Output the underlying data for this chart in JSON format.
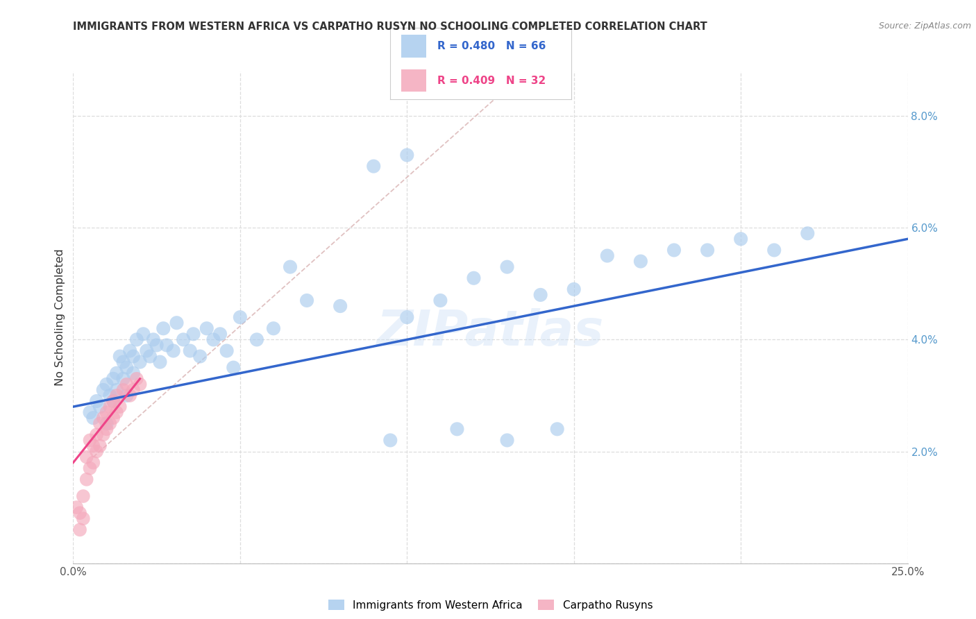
{
  "title": "IMMIGRANTS FROM WESTERN AFRICA VS CARPATHO RUSYN NO SCHOOLING COMPLETED CORRELATION CHART",
  "source": "Source: ZipAtlas.com",
  "ylabel": "No Schooling Completed",
  "xlim": [
    0.0,
    0.25
  ],
  "ylim": [
    0.0,
    0.088
  ],
  "xtick_vals": [
    0.0,
    0.05,
    0.1,
    0.15,
    0.2,
    0.25
  ],
  "xticklabels": [
    "0.0%",
    "",
    "",
    "",
    "",
    "25.0%"
  ],
  "ytick_vals_right": [
    0.0,
    0.02,
    0.04,
    0.06,
    0.08
  ],
  "yticklabels_right": [
    "",
    "2.0%",
    "4.0%",
    "6.0%",
    "8.0%"
  ],
  "watermark": "ZIPatlas",
  "blue_scatter_x": [
    0.005,
    0.006,
    0.007,
    0.008,
    0.009,
    0.01,
    0.01,
    0.011,
    0.012,
    0.012,
    0.013,
    0.013,
    0.014,
    0.015,
    0.015,
    0.016,
    0.016,
    0.017,
    0.018,
    0.018,
    0.019,
    0.02,
    0.021,
    0.022,
    0.023,
    0.024,
    0.025,
    0.026,
    0.027,
    0.028,
    0.03,
    0.031,
    0.033,
    0.035,
    0.036,
    0.038,
    0.04,
    0.042,
    0.044,
    0.046,
    0.048,
    0.05,
    0.055,
    0.06,
    0.065,
    0.07,
    0.08,
    0.09,
    0.095,
    0.1,
    0.11,
    0.12,
    0.13,
    0.14,
    0.15,
    0.16,
    0.17,
    0.18,
    0.19,
    0.2,
    0.21,
    0.22,
    0.1,
    0.13,
    0.115,
    0.145
  ],
  "blue_scatter_y": [
    0.027,
    0.026,
    0.029,
    0.028,
    0.031,
    0.025,
    0.032,
    0.03,
    0.033,
    0.029,
    0.034,
    0.031,
    0.037,
    0.033,
    0.036,
    0.03,
    0.035,
    0.038,
    0.034,
    0.037,
    0.04,
    0.036,
    0.041,
    0.038,
    0.037,
    0.04,
    0.039,
    0.036,
    0.042,
    0.039,
    0.038,
    0.043,
    0.04,
    0.038,
    0.041,
    0.037,
    0.042,
    0.04,
    0.041,
    0.038,
    0.035,
    0.044,
    0.04,
    0.042,
    0.053,
    0.047,
    0.046,
    0.071,
    0.022,
    0.044,
    0.047,
    0.051,
    0.053,
    0.048,
    0.049,
    0.055,
    0.054,
    0.056,
    0.056,
    0.058,
    0.056,
    0.059,
    0.073,
    0.022,
    0.024,
    0.024
  ],
  "pink_scatter_x": [
    0.001,
    0.002,
    0.002,
    0.003,
    0.003,
    0.004,
    0.004,
    0.005,
    0.005,
    0.006,
    0.006,
    0.007,
    0.007,
    0.008,
    0.008,
    0.009,
    0.009,
    0.01,
    0.01,
    0.011,
    0.011,
    0.012,
    0.012,
    0.013,
    0.013,
    0.014,
    0.015,
    0.016,
    0.017,
    0.018,
    0.019,
    0.02
  ],
  "pink_scatter_y": [
    0.01,
    0.006,
    0.009,
    0.008,
    0.012,
    0.015,
    0.019,
    0.017,
    0.022,
    0.018,
    0.021,
    0.02,
    0.023,
    0.021,
    0.025,
    0.023,
    0.026,
    0.024,
    0.027,
    0.025,
    0.028,
    0.026,
    0.029,
    0.027,
    0.03,
    0.028,
    0.031,
    0.032,
    0.03,
    0.031,
    0.033,
    0.032
  ],
  "blue_line_x": [
    0.0,
    0.25
  ],
  "blue_line_y": [
    0.028,
    0.058
  ],
  "pink_line_x": [
    0.0,
    0.02
  ],
  "pink_line_y": [
    0.018,
    0.033
  ],
  "dashed_line_x": [
    0.006,
    0.13
  ],
  "dashed_line_y": [
    0.019,
    0.085
  ],
  "background_color": "#ffffff",
  "grid_color": "#dddddd",
  "blue_color": "#aaccee",
  "pink_color": "#f4a8bb",
  "blue_line_color": "#3366cc",
  "pink_line_color": "#ee4488",
  "dashed_color": "#ddbbbb",
  "legend1_text": "R = 0.480   N = 66",
  "legend2_text": "R = 0.409   N = 32",
  "legend_label1": "Immigrants from Western Africa",
  "legend_label2": "Carpatho Rusyns"
}
